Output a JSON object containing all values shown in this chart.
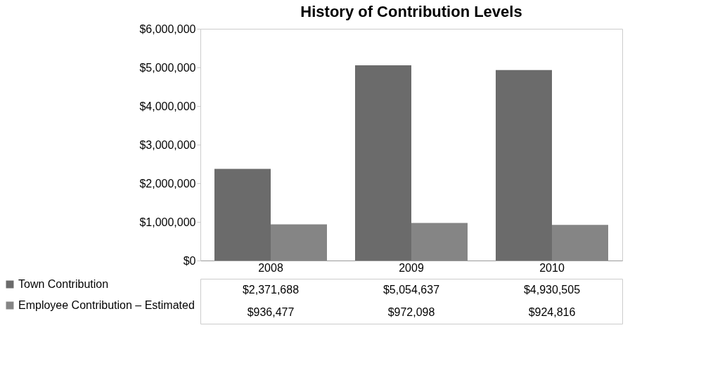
{
  "chart_data": {
    "type": "bar",
    "title": "History of Contribution Levels",
    "categories": [
      "2008",
      "2009",
      "2010"
    ],
    "series": [
      {
        "name": "Town Contribution",
        "color": "#6b6b6b",
        "values": [
          2371688,
          5054637,
          4930505
        ]
      },
      {
        "name": "Employee Contribution – Estimated",
        "color": "#858585",
        "values": [
          936477,
          972098,
          924816
        ]
      }
    ],
    "ylim": [
      0,
      6000000
    ],
    "yticks": [
      {
        "value": 0,
        "label": "$0"
      },
      {
        "value": 1000000,
        "label": "$1,000,000"
      },
      {
        "value": 2000000,
        "label": "$2,000,000"
      },
      {
        "value": 3000000,
        "label": "$3,000,000"
      },
      {
        "value": 4000000,
        "label": "$4,000,000"
      },
      {
        "value": 5000000,
        "label": "$5,000,000"
      },
      {
        "value": 6000000,
        "label": "$6,000,000"
      }
    ],
    "value_labels": [
      [
        "$2,371,688",
        "$5,054,637",
        "$4,930,505"
      ],
      [
        "$936,477",
        "$972,098",
        "$924,816"
      ]
    ],
    "grid": false,
    "legend": "bottom left"
  }
}
